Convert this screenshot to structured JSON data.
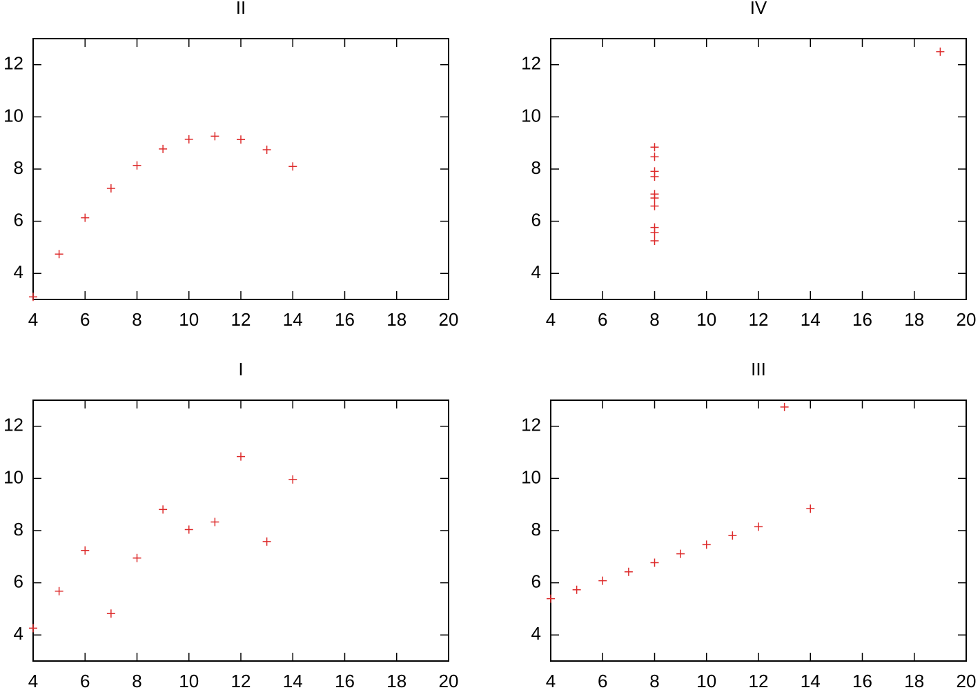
{
  "chart_data": [
    {
      "type": "scatter",
      "title": "II",
      "color": "#dd2a2a",
      "x": [
        10,
        8,
        13,
        9,
        11,
        14,
        6,
        4,
        12,
        7,
        5
      ],
      "values": [
        9.14,
        8.14,
        8.74,
        8.77,
        9.26,
        8.1,
        6.13,
        3.1,
        9.13,
        7.26,
        4.74
      ],
      "xlim": [
        4,
        20
      ],
      "xticks": [
        4,
        6,
        8,
        10,
        12,
        14,
        16,
        18,
        20
      ],
      "ylim": [
        3,
        13
      ],
      "yticks": [
        4,
        6,
        8,
        10,
        12
      ]
    },
    {
      "type": "scatter",
      "title": "IV",
      "color": "#dd2a2a",
      "x": [
        8,
        8,
        8,
        8,
        8,
        8,
        8,
        19,
        8,
        8,
        8
      ],
      "values": [
        6.58,
        5.76,
        7.71,
        8.84,
        8.47,
        7.04,
        5.25,
        12.5,
        5.56,
        7.91,
        6.89
      ],
      "xlim": [
        4,
        20
      ],
      "xticks": [
        4,
        6,
        8,
        10,
        12,
        14,
        16,
        18,
        20
      ],
      "ylim": [
        3,
        13
      ],
      "yticks": [
        4,
        6,
        8,
        10,
        12
      ]
    },
    {
      "type": "scatter",
      "title": "I",
      "color": "#dd2a2a",
      "x": [
        10,
        8,
        13,
        9,
        11,
        14,
        6,
        4,
        12,
        7,
        5
      ],
      "values": [
        8.04,
        6.95,
        7.58,
        8.81,
        8.33,
        9.96,
        7.24,
        4.26,
        10.84,
        4.82,
        5.68
      ],
      "xlim": [
        4,
        20
      ],
      "xticks": [
        4,
        6,
        8,
        10,
        12,
        14,
        16,
        18,
        20
      ],
      "ylim": [
        3,
        13
      ],
      "yticks": [
        4,
        6,
        8,
        10,
        12
      ]
    },
    {
      "type": "scatter",
      "title": "III",
      "color": "#dd2a2a",
      "x": [
        10,
        8,
        13,
        9,
        11,
        14,
        6,
        4,
        12,
        7,
        5
      ],
      "values": [
        7.46,
        6.77,
        12.74,
        7.11,
        7.81,
        8.84,
        6.08,
        5.39,
        8.15,
        6.42,
        5.73
      ],
      "xlim": [
        4,
        20
      ],
      "xticks": [
        4,
        6,
        8,
        10,
        12,
        14,
        16,
        18,
        20
      ],
      "ylim": [
        3,
        13
      ],
      "yticks": [
        4,
        6,
        8,
        10,
        12
      ]
    }
  ]
}
